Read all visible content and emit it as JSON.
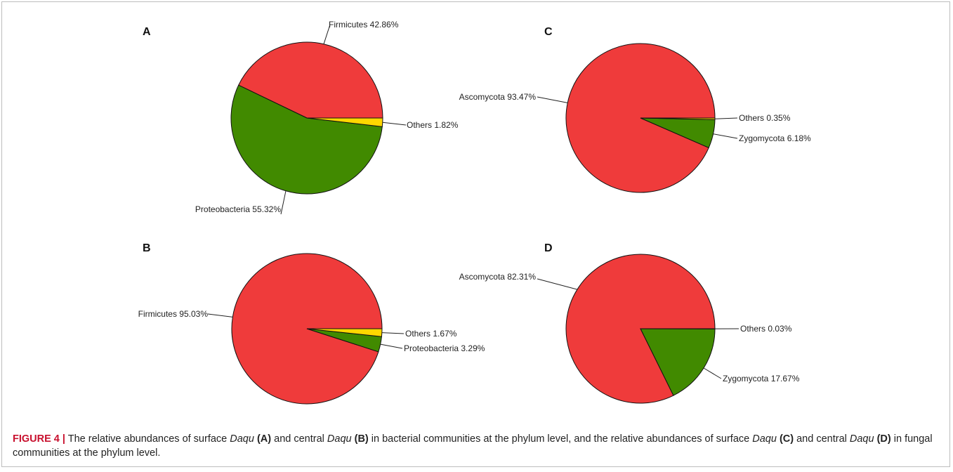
{
  "caption": {
    "figure_label": "FIGURE 4 |",
    "t1": " The relative abundances of surface ",
    "t2": "Daqu",
    "t3": " ",
    "t4": "(A)",
    "t5": " and central ",
    "t6": "Daqu",
    "t7": " ",
    "t8": "(B)",
    "t9": " in bacterial communities at the phylum level, and the relative abundances of surface ",
    "t10": "Daqu",
    "t11": " ",
    "t12": "(C)",
    "t13": " and central ",
    "t14": "Daqu",
    "t15": " ",
    "t16": "(D)",
    "t17": " in fungal communities at the phylum level."
  },
  "colors": {
    "red": "#ef3b3b",
    "green": "#418a00",
    "yellow": "#ffd700"
  },
  "chart_data": [
    {
      "type": "pie",
      "panel": "A",
      "slices": [
        {
          "name": "Firmicutes",
          "value": 42.86,
          "label": "Firmicutes 42.86%",
          "color": "#ef3b3b"
        },
        {
          "name": "Proteobacteria",
          "value": 55.32,
          "label": "Proteobacteria 55.32%",
          "color": "#418a00"
        },
        {
          "name": "Others",
          "value": 1.82,
          "label": "Others 1.82%",
          "color": "#ffd700"
        }
      ]
    },
    {
      "type": "pie",
      "panel": "B",
      "slices": [
        {
          "name": "Firmicutes",
          "value": 95.03,
          "label": "Firmicutes 95.03%",
          "color": "#ef3b3b"
        },
        {
          "name": "Proteobacteria",
          "value": 3.29,
          "label": "Proteobacteria 3.29%",
          "color": "#418a00"
        },
        {
          "name": "Others",
          "value": 1.67,
          "label": "Others 1.67%",
          "color": "#ffd700"
        }
      ]
    },
    {
      "type": "pie",
      "panel": "C",
      "slices": [
        {
          "name": "Ascomycota",
          "value": 93.47,
          "label": "Ascomycota 93.47%",
          "color": "#ef3b3b"
        },
        {
          "name": "Zygomycota",
          "value": 6.18,
          "label": "Zygomycota 6.18%",
          "color": "#418a00"
        },
        {
          "name": "Others",
          "value": 0.35,
          "label": "Others 0.35%",
          "color": "#ffd700"
        }
      ]
    },
    {
      "type": "pie",
      "panel": "D",
      "slices": [
        {
          "name": "Ascomycota",
          "value": 82.31,
          "label": "Ascomycota 82.31%",
          "color": "#ef3b3b"
        },
        {
          "name": "Zygomycota",
          "value": 17.67,
          "label": "Zygomycota 17.67%",
          "color": "#418a00"
        },
        {
          "name": "Others",
          "value": 0.03,
          "label": "Others 0.03%",
          "color": "#ffd700"
        }
      ]
    }
  ]
}
